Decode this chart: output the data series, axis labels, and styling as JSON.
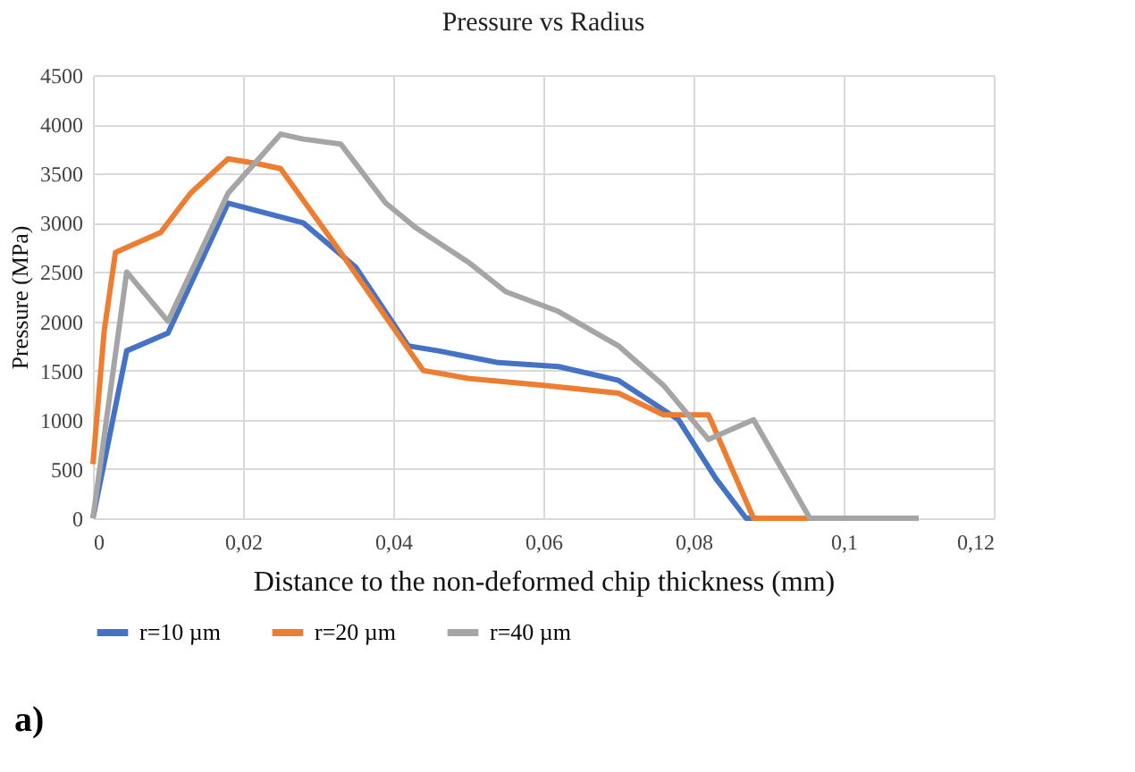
{
  "chart_data": {
    "type": "line",
    "title": "Pressure vs Radius",
    "xlabel": "Distance to the non-deformed chip thickness (mm)",
    "ylabel": "Pressure (MPa)",
    "annotations": [
      "a)"
    ],
    "xlim": [
      0,
      0.12
    ],
    "xticks": [
      0,
      {
        "value": 0.02,
        "label": "0,02"
      },
      {
        "value": 0.04,
        "label": "0,04"
      },
      {
        "value": 0.06,
        "label": "0,06"
      },
      {
        "value": 0.08,
        "label": "0,08"
      },
      {
        "value": 0.1,
        "label": "0,1"
      },
      {
        "value": 0.12,
        "label": "0,12"
      }
    ],
    "ylim": [
      0,
      4500
    ],
    "yticks": [
      0,
      500,
      1000,
      1500,
      2000,
      2500,
      3000,
      3500,
      4000,
      4500
    ],
    "grid": true,
    "legend": "bottom",
    "marker": "none",
    "line_style": "solid",
    "series": [
      {
        "name": "r=10 µm",
        "color": "#4472c4",
        "x": [
          0,
          0.0045,
          0.01,
          0.018,
          0.028,
          0.035,
          0.042,
          0.046,
          0.054,
          0.062,
          0.07,
          0.078,
          0.083,
          0.087,
          0.095
        ],
        "values": [
          0,
          1700,
          1880,
          3200,
          3000,
          2550,
          1750,
          1700,
          1580,
          1540,
          1400,
          1000,
          400,
          0,
          0
        ]
      },
      {
        "name": "r=20 µm",
        "color": "#ed7d31",
        "x": [
          0,
          0.0015,
          0.003,
          0.009,
          0.013,
          0.018,
          0.022,
          0.025,
          0.033,
          0.044,
          0.05,
          0.06,
          0.07,
          0.076,
          0.082,
          0.088,
          0.096
        ],
        "values": [
          550,
          1900,
          2700,
          2900,
          3300,
          3650,
          3600,
          3550,
          2700,
          1500,
          1420,
          1350,
          1270,
          1050,
          1050,
          0,
          0
        ]
      },
      {
        "name": "r=40 µm",
        "color": "#a5a5a5",
        "x": [
          0,
          0.0045,
          0.01,
          0.018,
          0.025,
          0.028,
          0.033,
          0.039,
          0.043,
          0.05,
          0.055,
          0.062,
          0.07,
          0.076,
          0.082,
          0.088,
          0.0955,
          0.11
        ],
        "values": [
          0,
          2500,
          2000,
          3300,
          3900,
          3850,
          3800,
          3200,
          2950,
          2600,
          2300,
          2100,
          1750,
          1350,
          800,
          1000,
          0,
          0
        ]
      }
    ]
  }
}
